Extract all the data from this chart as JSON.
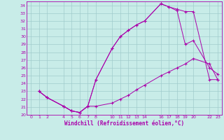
{
  "xlabel": "Windchill (Refroidissement éolien,°C)",
  "bg_color": "#c8ece8",
  "line_color": "#aa00aa",
  "grid_color": "#a0cccc",
  "xlim": [
    -0.5,
    23.5
  ],
  "ylim": [
    20,
    34.5
  ],
  "xticks": [
    0,
    1,
    2,
    4,
    5,
    6,
    7,
    8,
    10,
    11,
    12,
    13,
    14,
    16,
    17,
    18,
    19,
    20,
    22,
    23
  ],
  "yticks": [
    20,
    21,
    22,
    23,
    24,
    25,
    26,
    27,
    28,
    29,
    30,
    31,
    32,
    33,
    34
  ],
  "curve1_x": [
    1,
    2,
    4,
    5,
    6,
    7,
    8,
    10,
    11,
    12,
    13,
    14,
    16,
    17,
    18,
    19,
    20,
    22,
    23
  ],
  "curve1_y": [
    23,
    22.2,
    21.1,
    20.5,
    20.3,
    21.1,
    24.5,
    28.5,
    30,
    30.8,
    31.5,
    32,
    34.2,
    33.8,
    33.3,
    29,
    29.5,
    26,
    25.2
  ],
  "curve2_x": [
    1,
    2,
    4,
    5,
    6,
    7,
    8,
    10,
    11,
    12,
    13,
    14,
    16,
    17,
    18,
    19,
    20,
    22,
    23
  ],
  "curve2_y": [
    23,
    22.2,
    21.1,
    20.5,
    20.3,
    21.1,
    21.1,
    21.5,
    22,
    22.5,
    23.2,
    23.8,
    25,
    25.5,
    26,
    26.5,
    27.2,
    26.5,
    24.5
  ],
  "curve3_x": [
    1,
    2,
    4,
    5,
    6,
    7,
    8,
    10,
    11,
    12,
    13,
    14,
    16,
    17,
    18,
    19,
    20,
    22,
    23
  ],
  "curve3_y": [
    23,
    22.2,
    21.1,
    20.5,
    20.3,
    21.1,
    24.5,
    28.5,
    30,
    30.8,
    31.5,
    32,
    34.2,
    33.8,
    33.5,
    33.2,
    33.2,
    24.5,
    24.5
  ]
}
